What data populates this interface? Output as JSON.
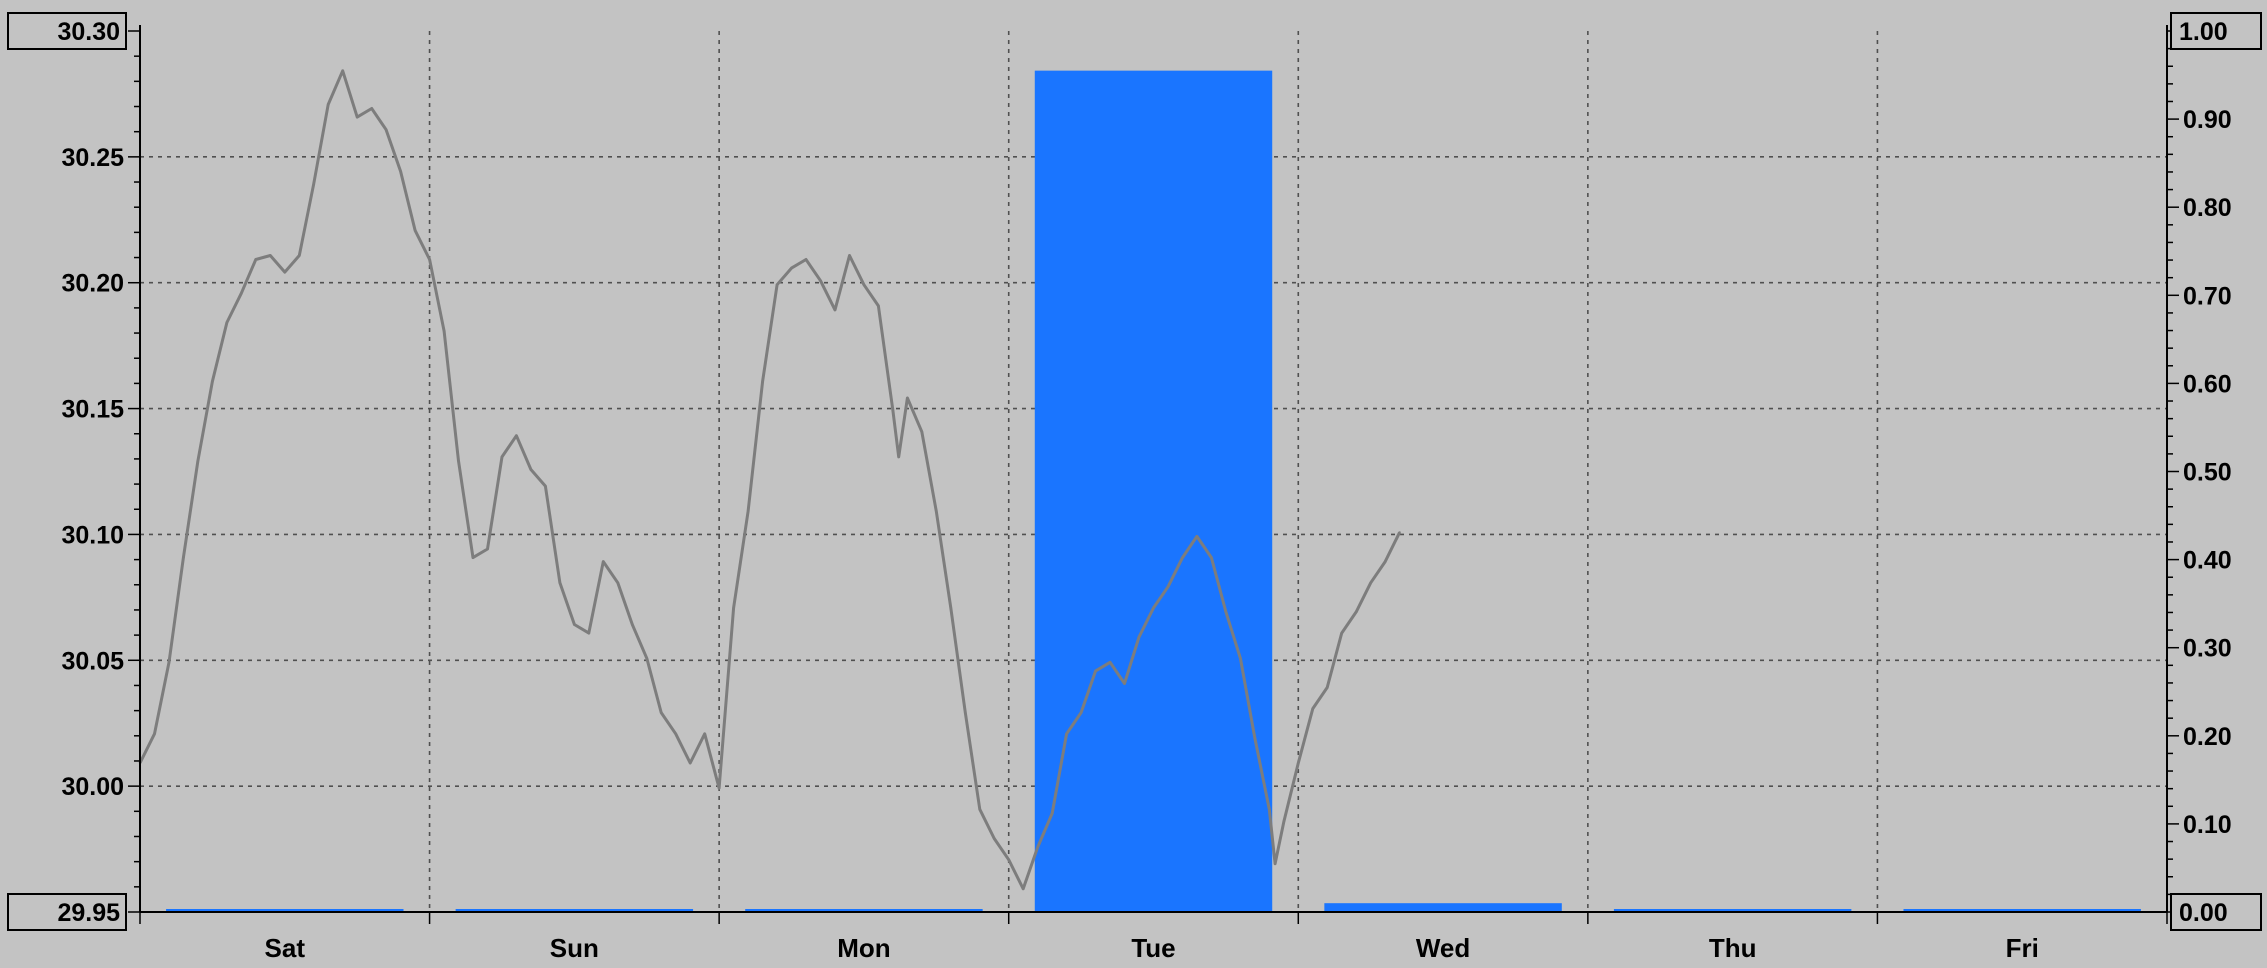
{
  "chart_data": {
    "type": "line",
    "title": "",
    "xlabel": "",
    "categories": [
      "Sat",
      "Sun",
      "Mon",
      "Tue",
      "Wed",
      "Thu",
      "Fri"
    ],
    "grid": true,
    "y_left": {
      "label": "",
      "range": [
        29.95,
        30.3
      ],
      "ticks": [
        "30.30",
        "30.25",
        "30.20",
        "30.15",
        "30.10",
        "30.05",
        "30.00",
        "29.95"
      ],
      "boxed_ticks": [
        "30.30",
        "29.95"
      ]
    },
    "y_right": {
      "label": "",
      "range": [
        0,
        1
      ],
      "ticks": [
        "1.00",
        "0.90",
        "0.80",
        "0.70",
        "0.60",
        "0.50",
        "0.40",
        "0.30",
        "0.20",
        "0.10",
        "0.00"
      ],
      "boxed_ticks": [
        "1.00",
        "0.00"
      ]
    },
    "series": [
      {
        "type": "line",
        "axis": "left",
        "color": "#7d7d7d",
        "x": [
          0,
          0.05,
          0.1,
          0.15,
          0.2,
          0.25,
          0.3,
          0.35,
          0.4,
          0.45,
          0.5,
          0.55,
          0.6,
          0.65,
          0.7,
          0.75,
          0.8,
          0.85,
          0.9,
          0.95,
          1.0,
          1.05,
          1.1,
          1.15,
          1.2,
          1.25,
          1.3,
          1.35,
          1.4,
          1.45,
          1.5,
          1.55,
          1.6,
          1.65,
          1.7,
          1.75,
          1.8,
          1.85,
          1.9,
          1.95,
          2.0,
          2.05,
          2.1,
          2.15,
          2.2,
          2.25,
          2.3,
          2.35,
          2.4,
          2.45,
          2.5,
          2.55,
          2.6,
          2.62,
          2.65,
          2.7,
          2.75,
          2.8,
          2.85,
          2.9,
          2.95,
          3.0,
          3.05,
          3.1,
          3.15,
          3.2,
          3.25,
          3.3,
          3.35,
          3.4,
          3.45,
          3.5,
          3.55,
          3.6,
          3.65,
          3.7,
          3.75,
          3.8,
          3.85,
          3.9,
          3.92,
          3.95,
          4.0,
          4.05,
          4.1,
          4.15,
          4.2,
          4.25,
          4.3,
          4.35
        ],
        "values": [
          30.01,
          30.02,
          30.05,
          30.09,
          30.13,
          30.16,
          30.185,
          30.195,
          30.21,
          30.21,
          30.205,
          30.21,
          30.24,
          30.27,
          30.285,
          30.265,
          30.27,
          30.26,
          30.245,
          30.22,
          30.21,
          30.18,
          30.13,
          30.09,
          30.095,
          30.13,
          30.14,
          30.125,
          30.12,
          30.08,
          30.065,
          30.06,
          30.09,
          30.08,
          30.065,
          30.05,
          30.03,
          30.02,
          30.01,
          30.02,
          30.0,
          30.07,
          30.11,
          30.16,
          30.2,
          30.205,
          30.21,
          30.2,
          30.19,
          30.21,
          30.2,
          30.19,
          30.15,
          30.13,
          30.155,
          30.14,
          30.11,
          30.07,
          30.03,
          29.99,
          29.98,
          29.97,
          29.96,
          29.975,
          29.99,
          30.02,
          30.03,
          30.045,
          30.05,
          30.04,
          30.06,
          30.07,
          30.08,
          30.09,
          30.1,
          30.09,
          30.07,
          30.05,
          30.02,
          29.99,
          29.97,
          29.985,
          30.01,
          30.03,
          30.04,
          30.06,
          30.07,
          30.08,
          30.09,
          30.1
        ]
      },
      {
        "type": "bar",
        "axis": "right",
        "color": "#1a75ff",
        "values": [
          0.0,
          0.0,
          0.0,
          0.955,
          0.01,
          0.0,
          0.0
        ]
      }
    ]
  }
}
